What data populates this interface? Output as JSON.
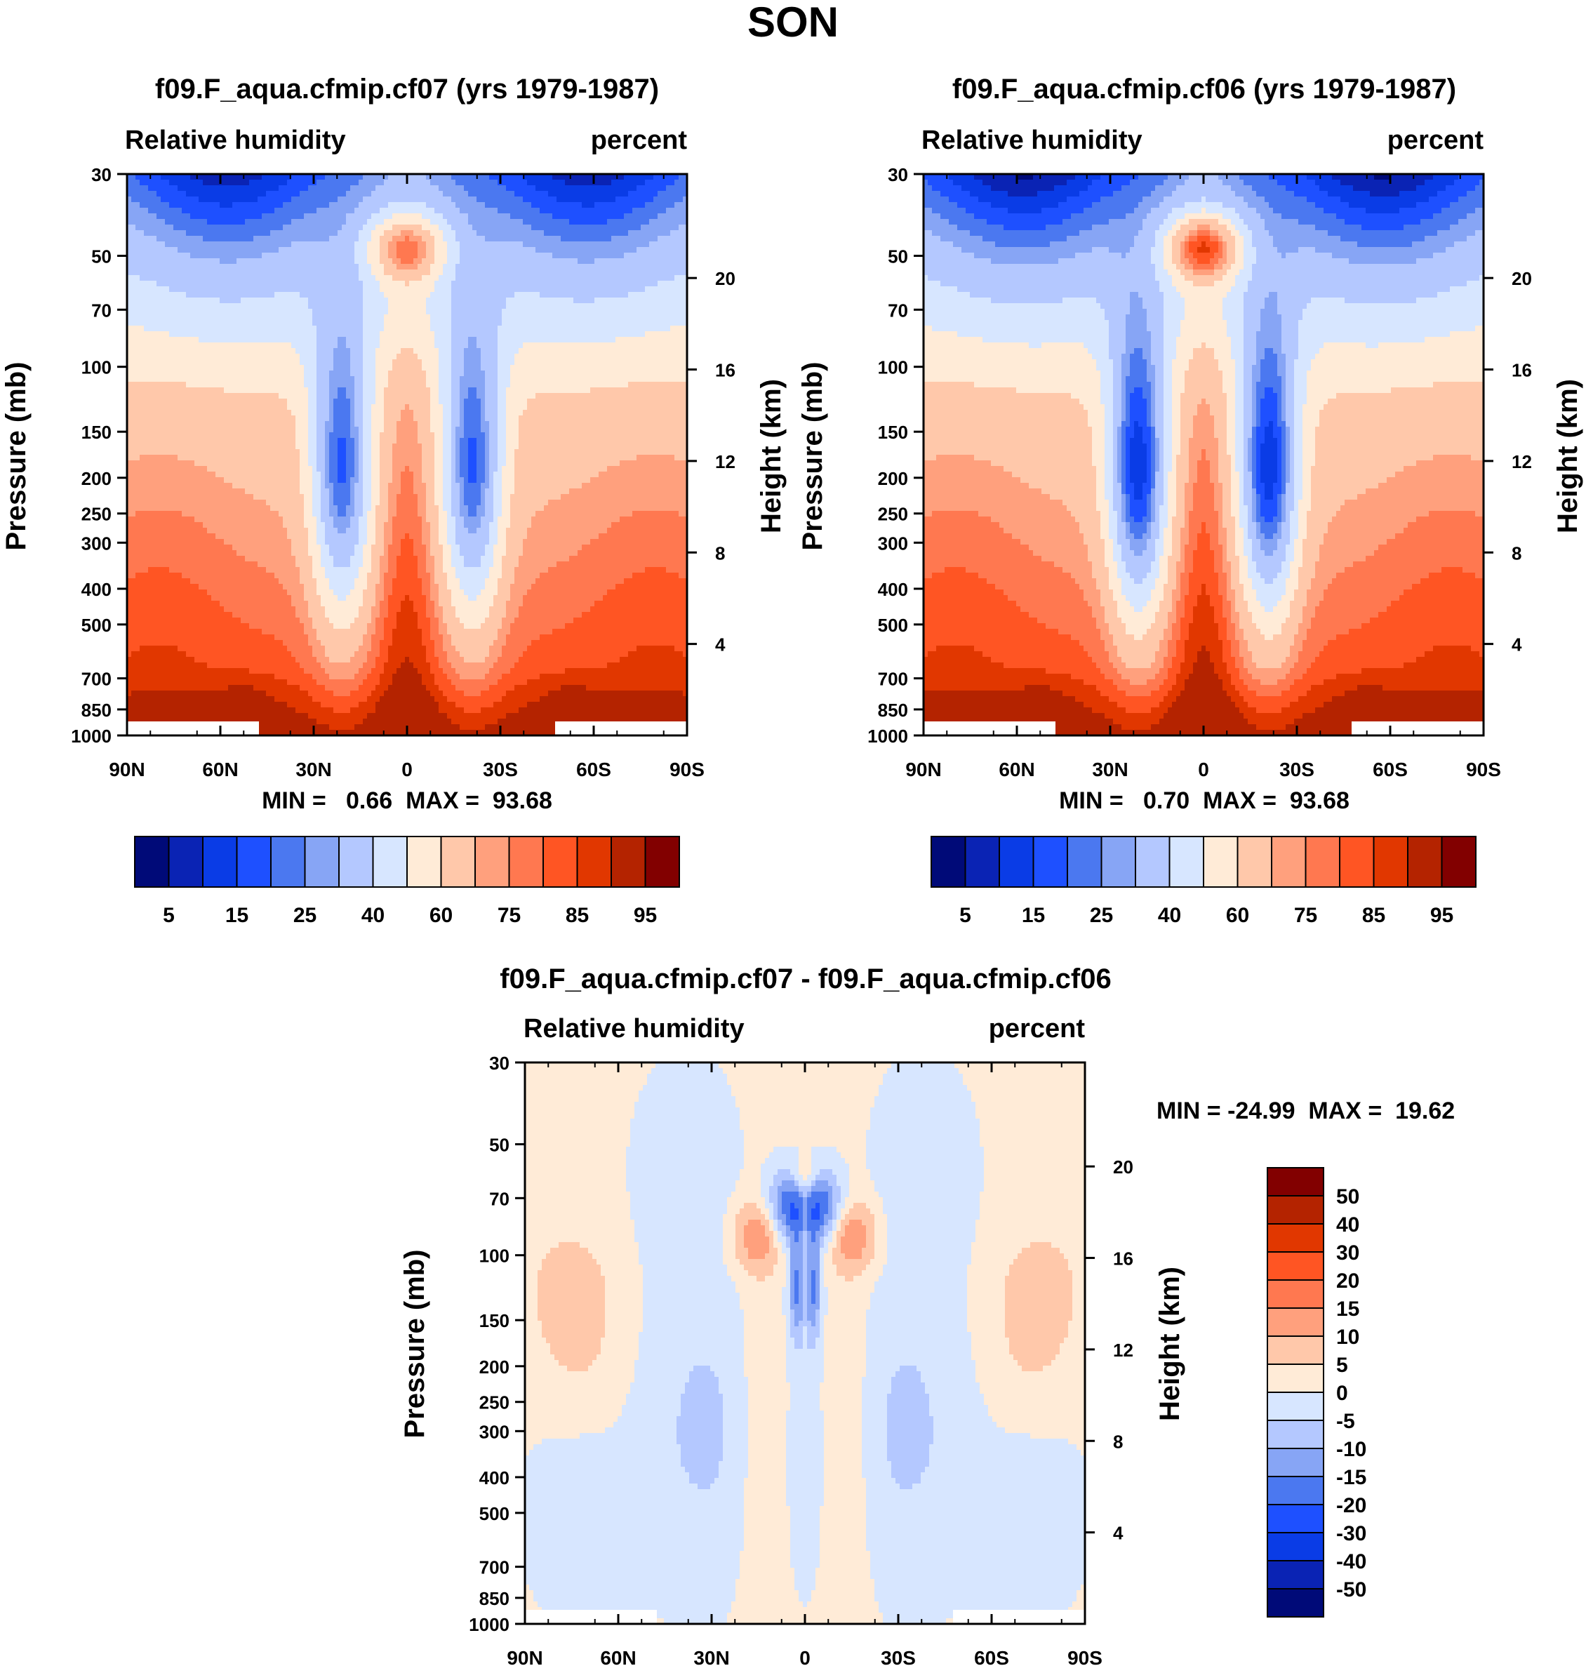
{
  "page_title": "SON",
  "colors": {
    "rh_palette": [
      "#000a78",
      "#0a23b4",
      "#0a3ce6",
      "#1e50ff",
      "#4b78f0",
      "#87a5f5",
      "#b4c8ff",
      "#d7e6ff",
      "#ffebd7",
      "#ffc8aa",
      "#ffa07d",
      "#ff7850",
      "#ff5523",
      "#e13700",
      "#b42300",
      "#820000"
    ],
    "diff_palette": [
      "#000a78",
      "#0a23b4",
      "#0a3ce6",
      "#1e50ff",
      "#4b78f0",
      "#87a5f5",
      "#b4c8ff",
      "#d7e6ff",
      "#ffebd7",
      "#ffc8aa",
      "#ffa07d",
      "#ff7850",
      "#ff5523",
      "#e13700",
      "#b42300",
      "#820000"
    ]
  },
  "chart_data": [
    {
      "type": "contour",
      "title": "f09.F_aqua.cfmip.cf07 (yrs 1979-1987)",
      "left_string": "Relative humidity",
      "right_string": "percent",
      "ylabel": "Pressure (mb)",
      "ylabel_right": "Height (km)",
      "x_tick_labels": [
        "90N",
        "60N",
        "30N",
        "0",
        "30S",
        "60S",
        "90S"
      ],
      "y_tick_values": [
        30,
        50,
        70,
        100,
        150,
        200,
        250,
        300,
        400,
        500,
        700,
        850,
        1000
      ],
      "y_right_tick_values": [
        20,
        16,
        12,
        8,
        4
      ],
      "stats_text": "MIN =   0.66  MAX =  93.68",
      "min": 0.66,
      "max": 93.68,
      "contour_levels": [
        5,
        10,
        15,
        20,
        25,
        30,
        40,
        50,
        60,
        70,
        75,
        80,
        85,
        90,
        95
      ],
      "colorbar_labels": [
        "5",
        "15",
        "25",
        "40",
        "60",
        "75",
        "85",
        "95"
      ],
      "field": {
        "upper_dry": 0.95,
        "top_moist": 1.0,
        "subtropic_dry": 1.0,
        "surface_moist": 1.0,
        "column_moist": 0.9
      }
    },
    {
      "type": "contour",
      "title": "f09.F_aqua.cfmip.cf06 (yrs 1979-1987)",
      "left_string": "Relative humidity",
      "right_string": "percent",
      "ylabel": "Pressure (mb)",
      "ylabel_right": "Height (km)",
      "x_tick_labels": [
        "90N",
        "60N",
        "30N",
        "0",
        "30S",
        "60S",
        "90S"
      ],
      "y_tick_values": [
        30,
        50,
        70,
        100,
        150,
        200,
        250,
        300,
        400,
        500,
        700,
        850,
        1000
      ],
      "y_right_tick_values": [
        20,
        16,
        12,
        8,
        4
      ],
      "stats_text": "MIN =   0.70  MAX =  93.68",
      "min": 0.7,
      "max": 93.68,
      "contour_levels": [
        5,
        10,
        15,
        20,
        25,
        30,
        40,
        50,
        60,
        70,
        75,
        80,
        85,
        90,
        95
      ],
      "colorbar_labels": [
        "5",
        "15",
        "25",
        "40",
        "60",
        "75",
        "85",
        "95"
      ],
      "field": {
        "upper_dry": 1.0,
        "top_moist": 1.2,
        "subtropic_dry": 1.15,
        "surface_moist": 1.05,
        "column_moist": 1.0
      }
    },
    {
      "type": "contour",
      "title": "f09.F_aqua.cfmip.cf07 - f09.F_aqua.cfmip.cf06",
      "left_string": "Relative humidity",
      "right_string": "percent",
      "ylabel": "Pressure (mb)",
      "ylabel_right": "Height (km)",
      "x_tick_labels": [
        "90N",
        "60N",
        "30N",
        "0",
        "30S",
        "60S",
        "90S"
      ],
      "y_tick_values": [
        30,
        50,
        70,
        100,
        150,
        200,
        250,
        300,
        400,
        500,
        700,
        850,
        1000
      ],
      "y_right_tick_values": [
        20,
        16,
        12,
        8,
        4
      ],
      "stats_text": "MIN = -24.99  MAX =  19.62",
      "min": -24.99,
      "max": 19.62,
      "contour_levels": [
        -50,
        -40,
        -30,
        -20,
        -15,
        -10,
        -5,
        0,
        5,
        10,
        15,
        20,
        30,
        40,
        50
      ],
      "colorbar_labels": [
        "50",
        "40",
        "30",
        "20",
        "15",
        "10",
        "5",
        "0",
        "-5",
        "-10",
        "-15",
        "-20",
        "-30",
        "-40",
        "-50"
      ]
    }
  ]
}
